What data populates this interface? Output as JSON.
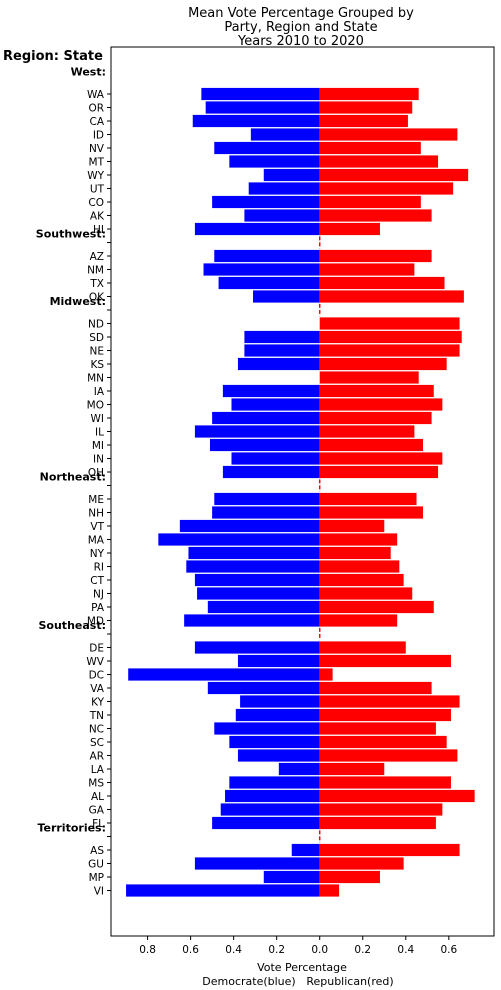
{
  "chart_data": {
    "type": "bar",
    "orientation": "horizontal-diverging",
    "title_lines": [
      "Mean Vote Percentage Grouped by",
      "Party, Region and State",
      "Years 2010 to 2020"
    ],
    "corner_label": "Region: State",
    "xlabel": "Vote Percentage",
    "left_label": "Democrate(blue)",
    "right_label": "Republican(red)",
    "colors": {
      "democrat": "#0000ff",
      "republican": "#ff0000",
      "divider": "#ff0000"
    },
    "x_ticks": [
      "0.8",
      "0.6",
      "0.4",
      "0.2",
      "0.0",
      "0.2",
      "0.4",
      "0.6"
    ],
    "x_tick_values": [
      -0.8,
      -0.6,
      -0.4,
      -0.2,
      0.0,
      0.2,
      0.4,
      0.6
    ],
    "xlim": [
      -0.97,
      0.81
    ],
    "regions": [
      {
        "name": "West:",
        "states": [
          {
            "state": "WA",
            "dem": 0.55,
            "rep": 0.46
          },
          {
            "state": "OR",
            "dem": 0.53,
            "rep": 0.43
          },
          {
            "state": "CA",
            "dem": 0.59,
            "rep": 0.41
          },
          {
            "state": "ID",
            "dem": 0.32,
            "rep": 0.64
          },
          {
            "state": "NV",
            "dem": 0.49,
            "rep": 0.47
          },
          {
            "state": "MT",
            "dem": 0.42,
            "rep": 0.55
          },
          {
            "state": "WY",
            "dem": 0.26,
            "rep": 0.69
          },
          {
            "state": "UT",
            "dem": 0.33,
            "rep": 0.62
          },
          {
            "state": "CO",
            "dem": 0.5,
            "rep": 0.47
          },
          {
            "state": "AK",
            "dem": 0.35,
            "rep": 0.52
          },
          {
            "state": "HI",
            "dem": 0.58,
            "rep": 0.28
          }
        ]
      },
      {
        "name": "Southwest:",
        "states": [
          {
            "state": "AZ",
            "dem": 0.49,
            "rep": 0.52
          },
          {
            "state": "NM",
            "dem": 0.54,
            "rep": 0.44
          },
          {
            "state": "TX",
            "dem": 0.47,
            "rep": 0.58
          },
          {
            "state": "OK",
            "dem": 0.31,
            "rep": 0.67
          }
        ]
      },
      {
        "name": "Midwest:",
        "states": [
          {
            "state": "ND",
            "dem": 0.0,
            "rep": 0.65
          },
          {
            "state": "SD",
            "dem": 0.35,
            "rep": 0.66
          },
          {
            "state": "NE",
            "dem": 0.35,
            "rep": 0.65
          },
          {
            "state": "KS",
            "dem": 0.38,
            "rep": 0.59
          },
          {
            "state": "MN",
            "dem": 0.0,
            "rep": 0.46
          },
          {
            "state": "IA",
            "dem": 0.45,
            "rep": 0.53
          },
          {
            "state": "MO",
            "dem": 0.41,
            "rep": 0.57
          },
          {
            "state": "WI",
            "dem": 0.5,
            "rep": 0.52
          },
          {
            "state": "IL",
            "dem": 0.58,
            "rep": 0.44
          },
          {
            "state": "MI",
            "dem": 0.51,
            "rep": 0.48
          },
          {
            "state": "IN",
            "dem": 0.41,
            "rep": 0.57
          },
          {
            "state": "OH",
            "dem": 0.45,
            "rep": 0.55
          }
        ]
      },
      {
        "name": "Northeast:",
        "states": [
          {
            "state": "ME",
            "dem": 0.49,
            "rep": 0.45
          },
          {
            "state": "NH",
            "dem": 0.5,
            "rep": 0.48
          },
          {
            "state": "VT",
            "dem": 0.65,
            "rep": 0.3
          },
          {
            "state": "MA",
            "dem": 0.75,
            "rep": 0.36
          },
          {
            "state": "NY",
            "dem": 0.61,
            "rep": 0.33
          },
          {
            "state": "RI",
            "dem": 0.62,
            "rep": 0.37
          },
          {
            "state": "CT",
            "dem": 0.58,
            "rep": 0.39
          },
          {
            "state": "NJ",
            "dem": 0.57,
            "rep": 0.43
          },
          {
            "state": "PA",
            "dem": 0.52,
            "rep": 0.53
          },
          {
            "state": "MD",
            "dem": 0.63,
            "rep": 0.36
          }
        ]
      },
      {
        "name": "Southeast:",
        "states": [
          {
            "state": "DE",
            "dem": 0.58,
            "rep": 0.4
          },
          {
            "state": "WV",
            "dem": 0.38,
            "rep": 0.61
          },
          {
            "state": "DC",
            "dem": 0.89,
            "rep": 0.06
          },
          {
            "state": "VA",
            "dem": 0.52,
            "rep": 0.52
          },
          {
            "state": "KY",
            "dem": 0.37,
            "rep": 0.65
          },
          {
            "state": "TN",
            "dem": 0.39,
            "rep": 0.61
          },
          {
            "state": "NC",
            "dem": 0.49,
            "rep": 0.54
          },
          {
            "state": "SC",
            "dem": 0.42,
            "rep": 0.59
          },
          {
            "state": "AR",
            "dem": 0.38,
            "rep": 0.64
          },
          {
            "state": "LA",
            "dem": 0.19,
            "rep": 0.3
          },
          {
            "state": "MS",
            "dem": 0.42,
            "rep": 0.61
          },
          {
            "state": "AL",
            "dem": 0.44,
            "rep": 0.72
          },
          {
            "state": "GA",
            "dem": 0.46,
            "rep": 0.57
          },
          {
            "state": "FL",
            "dem": 0.5,
            "rep": 0.54
          }
        ]
      },
      {
        "name": "Territories:",
        "states": [
          {
            "state": "AS",
            "dem": 0.13,
            "rep": 0.65
          },
          {
            "state": "GU",
            "dem": 0.58,
            "rep": 0.39
          },
          {
            "state": "MP",
            "dem": 0.26,
            "rep": 0.28
          },
          {
            "state": "VI",
            "dem": 0.9,
            "rep": 0.09
          }
        ]
      }
    ]
  }
}
